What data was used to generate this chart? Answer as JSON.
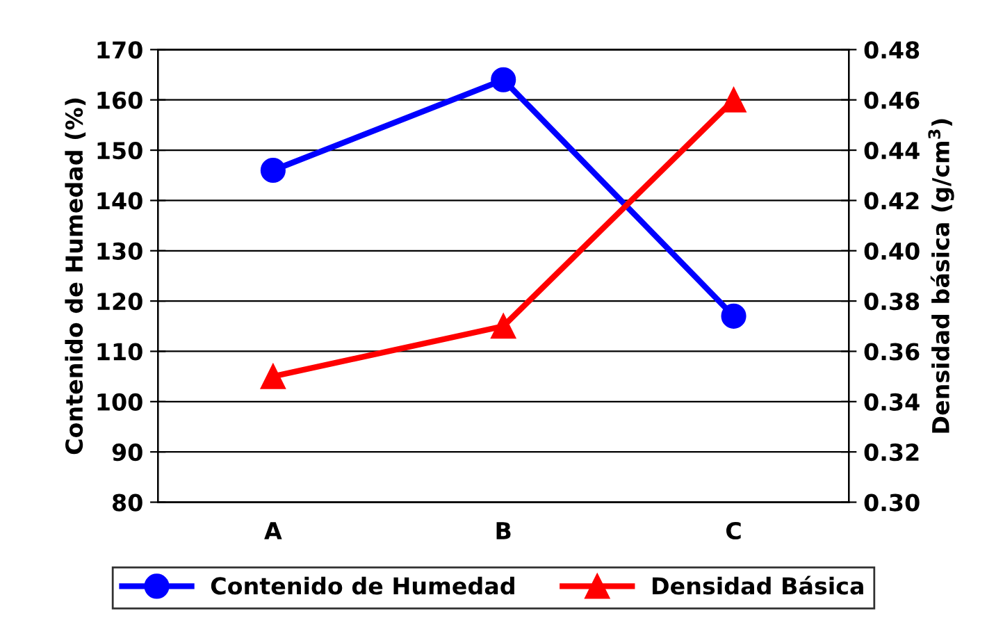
{
  "chart_data": {
    "type": "line",
    "ylabel": "Contenido de Humedad (%)",
    "y2label": "Densidad básica (g/cm$^{3}$)",
    "categories": [
      "A",
      "B",
      "C"
    ],
    "series": [
      {
        "name": "Contenido de Humedad",
        "color": "#0000ff",
        "marker": "circle",
        "values": [
          146,
          164,
          117
        ]
      },
      {
        "name": "Densidad Básica",
        "color": "#ff0000",
        "marker": "triangle",
        "axis": "y2",
        "values": [
          0.35,
          0.37,
          0.46
        ]
      }
    ],
    "ylim": [
      80,
      170
    ],
    "yticks": [
      80,
      90,
      100,
      110,
      120,
      130,
      140,
      150,
      160,
      170
    ],
    "y2lim": [
      0.3,
      0.48
    ],
    "y2ticks": [
      {
        "value": 0.3,
        "label": "0.30"
      },
      {
        "value": 0.32,
        "label": "0.32"
      },
      {
        "value": 0.34,
        "label": "0.34"
      },
      {
        "value": 0.36,
        "label": "0.36"
      },
      {
        "value": 0.38,
        "label": "0.38"
      },
      {
        "value": 0.4,
        "label": "0.40"
      },
      {
        "value": 0.42,
        "label": "0.42"
      },
      {
        "value": 0.44,
        "label": "0.44"
      },
      {
        "value": 0.46,
        "label": "0.46"
      },
      {
        "value": 0.48,
        "label": "0.48"
      }
    ],
    "grid": "y",
    "legend": "bottom"
  }
}
